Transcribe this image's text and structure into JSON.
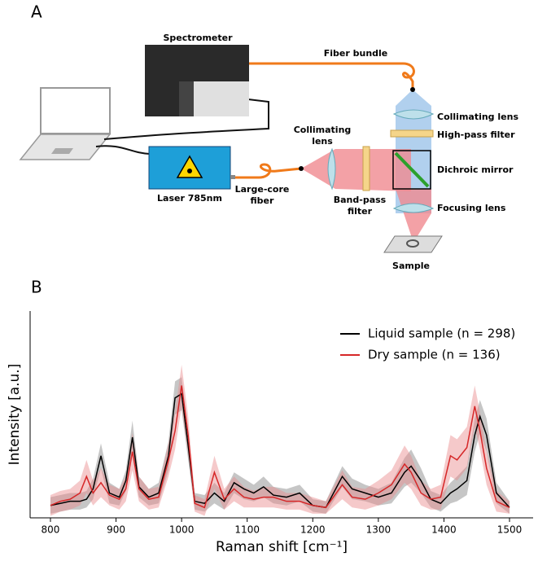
{
  "panel_a": {
    "label": "A",
    "spectrometer": "Spectrometer",
    "fiber_bundle": "Fiber bundle",
    "collimating_lens_top": "Collimating lens",
    "high_pass_filter": "High-pass filter",
    "dichroic_mirror": "Dichroic mirror",
    "focusing_lens": "Focusing lens",
    "sample": "Sample",
    "laser": "Laser 785nm",
    "large_core_fiber": [
      "Large-core",
      "fiber"
    ],
    "collimating_lens_left": [
      "Collimating",
      "lens"
    ],
    "band_pass_filter": [
      "Band-pass",
      "filter"
    ]
  },
  "chart_data": {
    "type": "line",
    "panel_label": "B",
    "xlabel": "Raman shift [cm⁻¹]",
    "ylabel": "Intensity [a.u.]",
    "xlim": [
      769,
      1536
    ],
    "ylim": [
      0,
      1
    ],
    "xticks": [
      800,
      900,
      1000,
      1100,
      1200,
      1300,
      1400,
      1500
    ],
    "legend": "upper right",
    "x": [
      800,
      815,
      830,
      845,
      855,
      865,
      877,
      890,
      905,
      915,
      925,
      935,
      950,
      965,
      980,
      990,
      1000,
      1010,
      1020,
      1035,
      1050,
      1065,
      1080,
      1095,
      1110,
      1125,
      1140,
      1160,
      1180,
      1200,
      1220,
      1245,
      1260,
      1280,
      1300,
      1320,
      1340,
      1350,
      1365,
      1380,
      1395,
      1410,
      1420,
      1435,
      1447,
      1455,
      1465,
      1480,
      1500
    ],
    "series": [
      {
        "name": "Liquid sample (n = 298)",
        "color": "#000000",
        "band_color": "#808080",
        "values": [
          0.06,
          0.07,
          0.08,
          0.08,
          0.09,
          0.14,
          0.3,
          0.12,
          0.1,
          0.18,
          0.39,
          0.15,
          0.1,
          0.12,
          0.3,
          0.58,
          0.6,
          0.35,
          0.08,
          0.07,
          0.12,
          0.08,
          0.17,
          0.14,
          0.12,
          0.15,
          0.11,
          0.1,
          0.12,
          0.06,
          0.05,
          0.2,
          0.14,
          0.12,
          0.1,
          0.12,
          0.22,
          0.25,
          0.18,
          0.09,
          0.07,
          0.12,
          0.14,
          0.18,
          0.4,
          0.49,
          0.4,
          0.12,
          0.05
        ],
        "std": [
          0.04,
          0.04,
          0.04,
          0.04,
          0.04,
          0.05,
          0.06,
          0.05,
          0.04,
          0.05,
          0.08,
          0.05,
          0.04,
          0.05,
          0.07,
          0.08,
          0.08,
          0.07,
          0.04,
          0.04,
          0.05,
          0.04,
          0.05,
          0.05,
          0.04,
          0.05,
          0.04,
          0.04,
          0.04,
          0.03,
          0.03,
          0.05,
          0.05,
          0.04,
          0.04,
          0.05,
          0.07,
          0.08,
          0.06,
          0.04,
          0.04,
          0.05,
          0.06,
          0.07,
          0.08,
          0.08,
          0.08,
          0.05,
          0.03
        ]
      },
      {
        "name": "Dry sample (n = 136)",
        "color": "#d62728",
        "band_color": "#e8888a",
        "values": [
          0.06,
          0.08,
          0.09,
          0.12,
          0.2,
          0.12,
          0.17,
          0.11,
          0.09,
          0.14,
          0.32,
          0.14,
          0.09,
          0.1,
          0.28,
          0.42,
          0.64,
          0.4,
          0.07,
          0.05,
          0.22,
          0.09,
          0.14,
          0.1,
          0.09,
          0.1,
          0.1,
          0.08,
          0.08,
          0.06,
          0.05,
          0.16,
          0.1,
          0.09,
          0.12,
          0.16,
          0.26,
          0.22,
          0.12,
          0.09,
          0.1,
          0.3,
          0.28,
          0.34,
          0.54,
          0.42,
          0.24,
          0.08,
          0.05
        ],
        "std": [
          0.05,
          0.05,
          0.05,
          0.06,
          0.08,
          0.06,
          0.07,
          0.05,
          0.05,
          0.06,
          0.09,
          0.06,
          0.05,
          0.05,
          0.08,
          0.09,
          0.1,
          0.09,
          0.04,
          0.04,
          0.08,
          0.05,
          0.06,
          0.05,
          0.04,
          0.05,
          0.05,
          0.04,
          0.04,
          0.04,
          0.03,
          0.07,
          0.05,
          0.05,
          0.06,
          0.07,
          0.09,
          0.08,
          0.06,
          0.05,
          0.06,
          0.1,
          0.1,
          0.1,
          0.1,
          0.09,
          0.08,
          0.05,
          0.03
        ]
      }
    ]
  }
}
